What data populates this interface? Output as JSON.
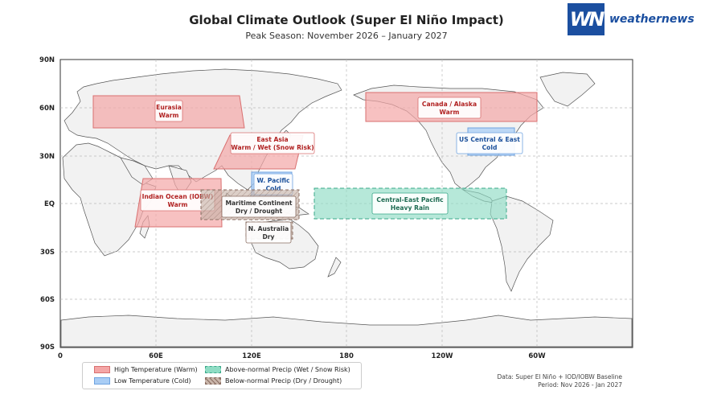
{
  "header": {
    "title": "Global Climate Outlook (Super El Niño Impact)",
    "subtitle": "Peak Season: November 2026 – January 2027",
    "logo_text": "weathernews",
    "logo_mark": "WN"
  },
  "axes": {
    "lat_labels": [
      "90N",
      "60N",
      "30N",
      "EQ",
      "30S",
      "60S",
      "90S"
    ],
    "lon_labels": [
      "0",
      "60E",
      "120E",
      "180",
      "120W",
      "60W"
    ]
  },
  "regions": [
    {
      "label_lines": [
        "Eurasia",
        "Warm"
      ],
      "category": "warm"
    },
    {
      "label_lines": [
        "East Asia",
        "Warm / Wet (Snow Risk)"
      ],
      "category": "warm"
    },
    {
      "label_lines": [
        "Canada / Alaska",
        "Warm"
      ],
      "category": "warm"
    },
    {
      "label_lines": [
        "US Central & East",
        "Cold"
      ],
      "category": "cold"
    },
    {
      "label_lines": [
        "W. Pacific",
        "Cold"
      ],
      "category": "cold"
    },
    {
      "label_lines": [
        "Indian Ocean (IOBW)",
        "Warm"
      ],
      "category": "warm"
    },
    {
      "label_lines": [
        "Maritime Continent",
        "Dry / Drought"
      ],
      "category": "dry"
    },
    {
      "label_lines": [
        "N. Australia",
        "Dry"
      ],
      "category": "dry"
    },
    {
      "label_lines": [
        "Central-East Pacific",
        "Heavy Rain"
      ],
      "category": "wet"
    }
  ],
  "legend": [
    {
      "label": "High Temperature (Warm)",
      "category": "warm"
    },
    {
      "label": "Low Temperature (Cold)",
      "category": "cold"
    },
    {
      "label": "Above-normal Precip (Wet / Snow Risk)",
      "category": "wet"
    },
    {
      "label": "Below-normal Precip (Dry / Drought)",
      "category": "dry"
    }
  ],
  "footer": {
    "line1": "Data: Super El Niño + IOD/IOBW Baseline",
    "line2": "Period: Nov 2026 - Jan 2027"
  },
  "colors": {
    "warm_fill": "#f4a6a6",
    "warm_stroke": "#d97070",
    "warm_text": "#b02020",
    "cold_fill": "#a9cdf5",
    "cold_stroke": "#6fa3e0",
    "cold_text": "#1a4f9a",
    "wet_fill": "#8fdcc4",
    "wet_stroke": "#3aa889",
    "wet_text": "#1d6b52",
    "dry_fill": "#c9b5aa",
    "dry_stroke": "#8a6e62",
    "dry_text": "#333333",
    "ocean": "#ffffff",
    "land": "#f2f2f2",
    "border": "#555555"
  }
}
